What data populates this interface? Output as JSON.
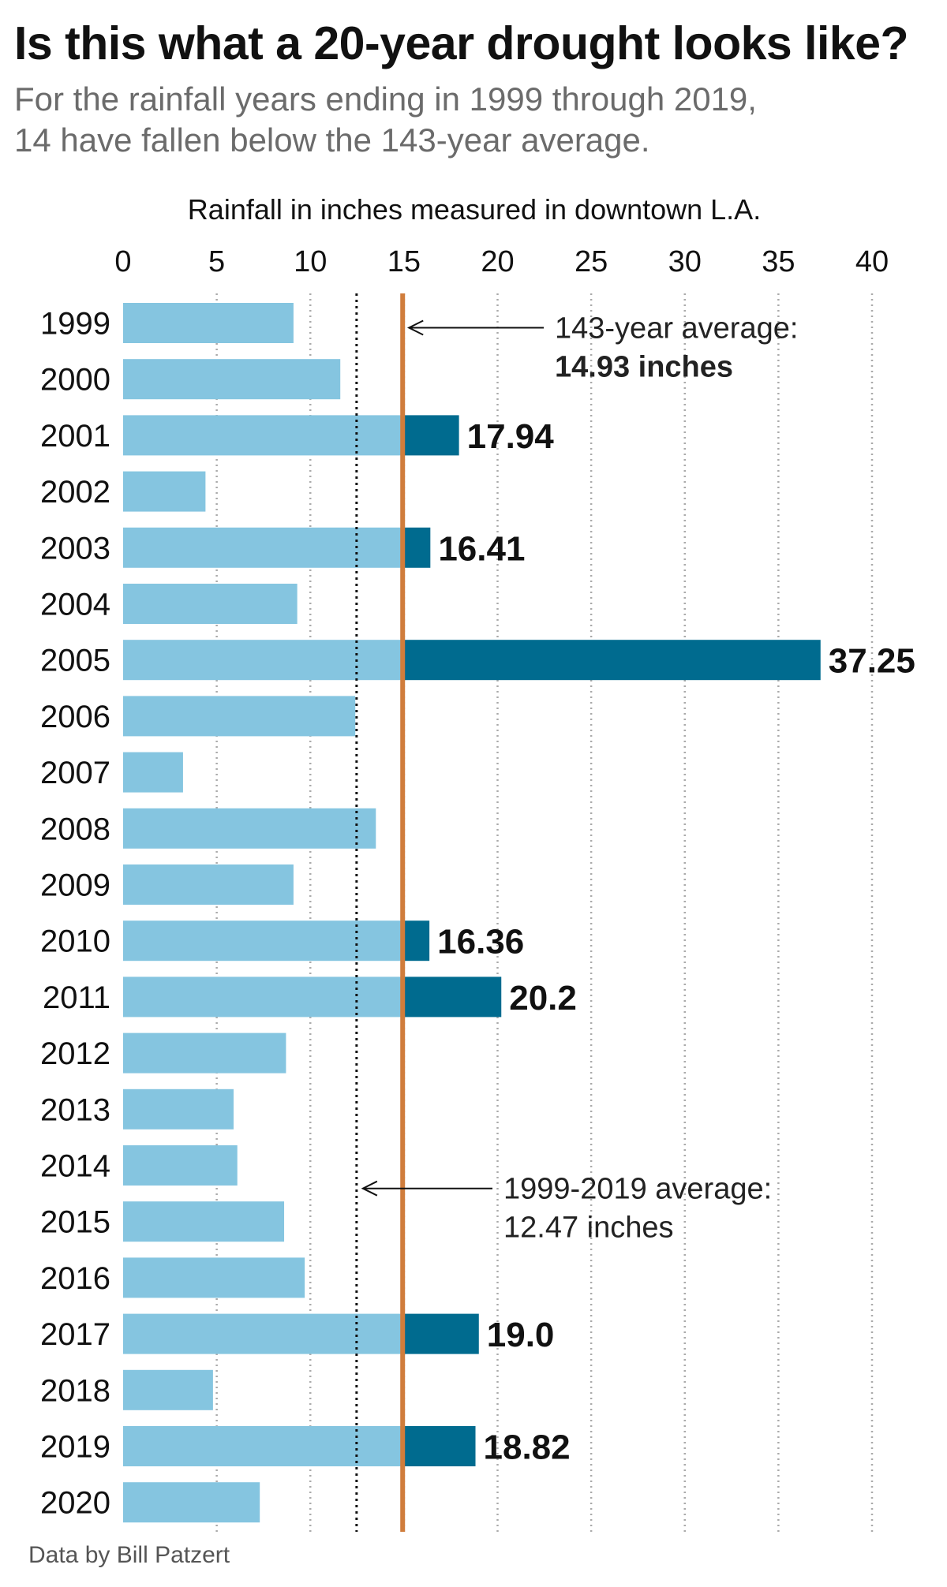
{
  "header": {
    "title": "Is this what a 20-year drought looks like?",
    "subtitle_line1": "For the rainfall years ending in 1999 through 2019,",
    "subtitle_line2": "14 have fallen below the 143-year average."
  },
  "footer": {
    "source": "Data by Bill Patzert"
  },
  "colors": {
    "below_average": "#85c5e0",
    "above_average": "#006b8f",
    "long_term_average_line": "#d07d3c",
    "recent_average_line": "#111111",
    "gridline": "#aaaaaa"
  },
  "chart_data": {
    "type": "bar",
    "orientation": "horizontal",
    "xlabel": "Rainfall in inches measured in downtown L.A.",
    "ylabel": "",
    "xlim": [
      0,
      40
    ],
    "xticks": [
      0,
      5,
      10,
      15,
      20,
      25,
      30,
      35,
      40
    ],
    "grid": true,
    "categories": [
      "1999",
      "2000",
      "2001",
      "2002",
      "2003",
      "2004",
      "2005",
      "2006",
      "2007",
      "2008",
      "2009",
      "2010",
      "2011",
      "2012",
      "2013",
      "2014",
      "2015",
      "2016",
      "2017",
      "2018",
      "2019",
      "2020"
    ],
    "values": [
      9.1,
      11.6,
      17.94,
      4.4,
      16.41,
      9.3,
      37.25,
      12.4,
      3.2,
      13.5,
      9.1,
      16.36,
      20.2,
      8.7,
      5.9,
      6.1,
      8.6,
      9.7,
      19.0,
      4.8,
      18.82,
      7.3
    ],
    "data_labels": [
      {
        "category": "2001",
        "text": "17.94"
      },
      {
        "category": "2003",
        "text": "16.41"
      },
      {
        "category": "2005",
        "text": "37.25"
      },
      {
        "category": "2010",
        "text": "16.36"
      },
      {
        "category": "2011",
        "text": "20.2"
      },
      {
        "category": "2017",
        "text": "19.0"
      },
      {
        "category": "2019",
        "text": "18.82"
      }
    ],
    "reference_lines": [
      {
        "id": "long_term",
        "value": 14.93,
        "style": "solid",
        "label_line1": "143-year average:",
        "label_line2": "14.93 inches",
        "label_row": "1999"
      },
      {
        "id": "recent",
        "value": 12.47,
        "style": "dotted",
        "label_line1": "1999-2019 average:",
        "label_line2": "12.47 inches",
        "label_row": "2015"
      }
    ]
  }
}
